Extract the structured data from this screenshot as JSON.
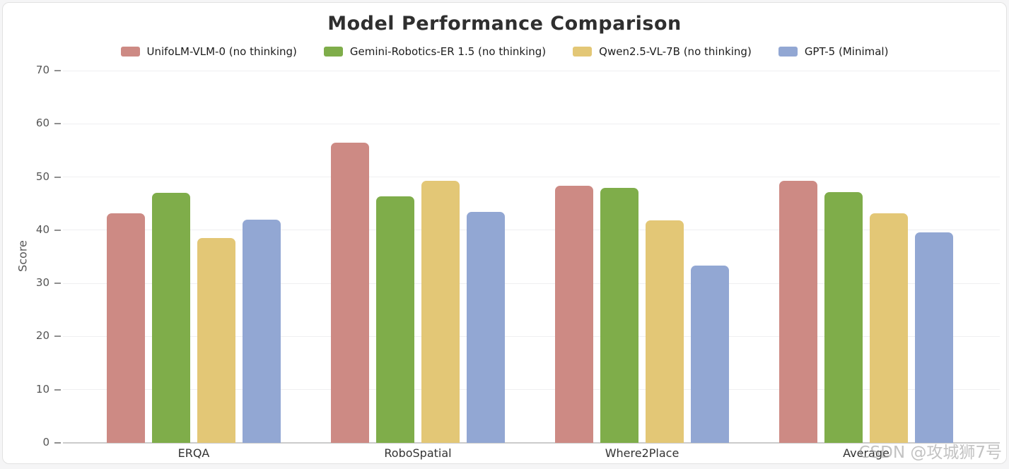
{
  "watermark": {
    "text": "CSDN @攻城狮7号"
  },
  "chart_data": {
    "type": "bar",
    "title": "Model Performance Comparison",
    "xlabel": "",
    "ylabel": "Score",
    "categories": [
      "ERQA",
      "RoboSpatial",
      "Where2Place",
      "Average"
    ],
    "series": [
      {
        "name": "UnifoLM-VLM-0 (no thinking)",
        "color": "#cd8a84",
        "values": [
          43.2,
          56.4,
          48.4,
          49.3
        ]
      },
      {
        "name": "Gemini-Robotics-ER 1.5 (no thinking)",
        "color": "#7fad4a",
        "values": [
          47.0,
          46.4,
          47.9,
          47.1
        ]
      },
      {
        "name": "Qwen2.5-VL-7B (no thinking)",
        "color": "#e3c776",
        "values": [
          38.5,
          49.3,
          41.9,
          43.2
        ]
      },
      {
        "name": "GPT-5 (Minimal)",
        "color": "#92a7d3",
        "values": [
          42.0,
          43.5,
          33.4,
          39.6
        ]
      }
    ],
    "ylim": [
      0,
      70
    ],
    "yticks": [
      0,
      10,
      20,
      30,
      40,
      50,
      60,
      70
    ],
    "grid": true,
    "legend_position": "top"
  }
}
